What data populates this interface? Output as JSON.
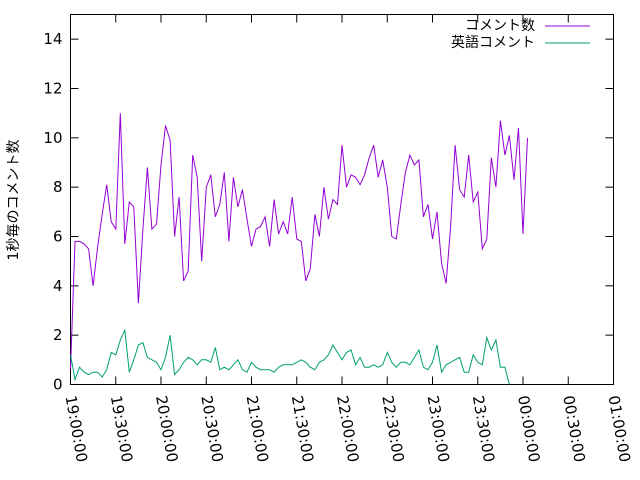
{
  "chart_data": {
    "type": "line",
    "ylabel": "1秒毎のコメント数",
    "ylim": [
      0,
      15
    ],
    "yticks": [
      0,
      2,
      4,
      6,
      8,
      10,
      12,
      14
    ],
    "xlim_minutes": [
      0,
      360
    ],
    "xticks": [
      "19:00:00",
      "19:30:00",
      "20:00:00",
      "20:30:00",
      "21:00:00",
      "21:30:00",
      "22:00:00",
      "22:30:00",
      "23:00:00",
      "23:30:00",
      "00:00:00",
      "00:30:00",
      "01:00:00"
    ],
    "legend_position": "top-right",
    "grid": false,
    "x_step_minutes": 3,
    "series": [
      {
        "name": "コメント数",
        "color": "#9400d3",
        "values": [
          0.6,
          5.8,
          5.8,
          5.7,
          5.5,
          4.0,
          5.6,
          6.9,
          8.1,
          6.6,
          6.3,
          11.0,
          5.7,
          7.4,
          7.2,
          3.3,
          6.3,
          8.8,
          6.3,
          6.5,
          8.9,
          10.5,
          9.9,
          6.0,
          7.6,
          4.2,
          4.6,
          9.3,
          8.4,
          5.0,
          8.0,
          8.5,
          6.8,
          7.3,
          8.6,
          5.8,
          8.4,
          7.2,
          7.9,
          6.7,
          5.6,
          6.3,
          6.4,
          6.8,
          5.6,
          7.5,
          6.1,
          6.6,
          6.1,
          7.6,
          5.9,
          5.8,
          4.2,
          4.7,
          6.9,
          6.0,
          8.0,
          6.7,
          7.5,
          7.3,
          9.7,
          8.0,
          8.5,
          8.4,
          8.1,
          8.5,
          9.2,
          9.7,
          8.4,
          9.1,
          8.0,
          6.0,
          5.9,
          7.3,
          8.6,
          9.3,
          8.9,
          9.1,
          6.8,
          7.3,
          5.9,
          7.0,
          4.9,
          4.1,
          6.4,
          9.7,
          7.9,
          7.6,
          9.3,
          7.4,
          7.8,
          5.5,
          5.9,
          9.2,
          8.0,
          10.7,
          9.3,
          10.1,
          8.3,
          10.4,
          6.1,
          10.0
        ]
      },
      {
        "name": "英語コメント",
        "color": "#009e73",
        "values": [
          1.2,
          0.2,
          0.7,
          0.5,
          0.4,
          0.5,
          0.5,
          0.3,
          0.6,
          1.3,
          1.2,
          1.8,
          2.2,
          0.5,
          1.0,
          1.6,
          1.7,
          1.1,
          1.0,
          0.9,
          0.6,
          1.1,
          2.0,
          0.4,
          0.6,
          0.9,
          1.1,
          1.0,
          0.8,
          1.0,
          1.0,
          0.9,
          1.5,
          0.6,
          0.7,
          0.6,
          0.8,
          1.0,
          0.6,
          0.5,
          0.9,
          0.7,
          0.6,
          0.6,
          0.6,
          0.5,
          0.7,
          0.8,
          0.8,
          0.8,
          0.9,
          1.0,
          0.9,
          0.7,
          0.6,
          0.9,
          1.0,
          1.2,
          1.6,
          1.3,
          1.0,
          1.3,
          1.4,
          0.8,
          1.1,
          0.7,
          0.7,
          0.8,
          0.7,
          0.8,
          1.3,
          0.9,
          0.7,
          0.9,
          0.9,
          0.8,
          1.1,
          1.4,
          0.7,
          0.6,
          0.9,
          1.6,
          0.5,
          0.8,
          0.9,
          1.0,
          1.1,
          0.5,
          0.5,
          1.2,
          0.9,
          0.8,
          1.9,
          1.4,
          1.8,
          0.7,
          0.7,
          0.0
        ]
      }
    ]
  }
}
